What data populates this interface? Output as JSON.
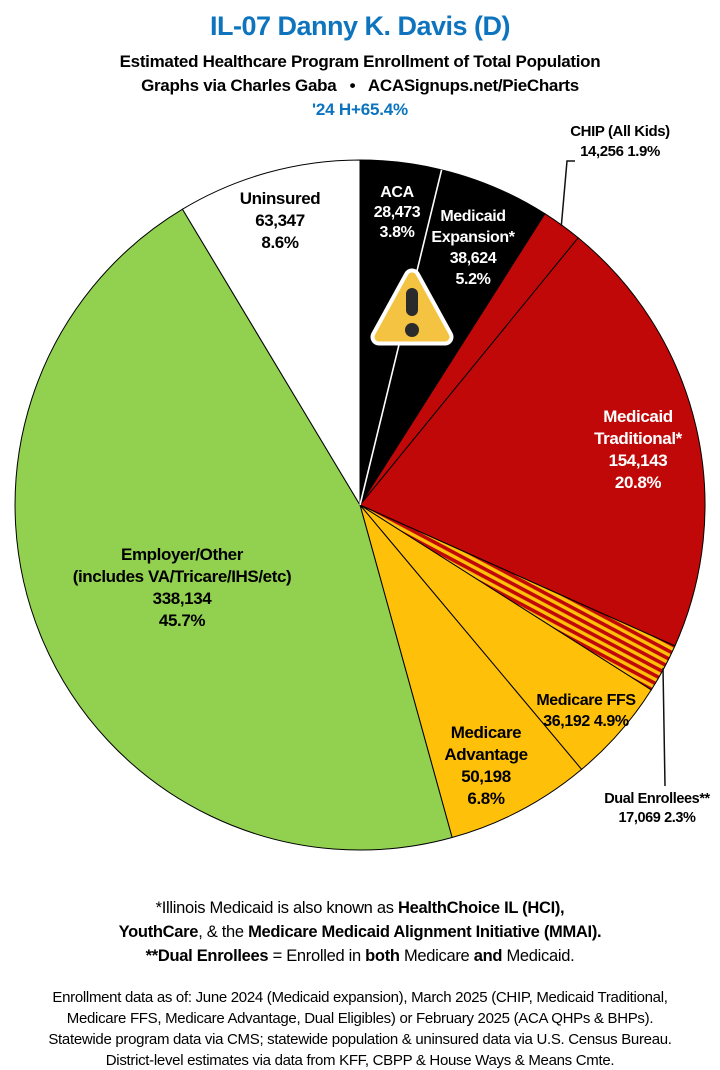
{
  "header": {
    "title": "IL-07 Danny K. Davis (D)",
    "subtitle1": "Estimated Healthcare Program Enrollment of Total Population",
    "subtitle2": "Graphs via Charles Gaba   •   ACASignups.net/PieCharts",
    "subtitle3": "'24 H+65.4%"
  },
  "colors": {
    "title_blue": "#0E74BE",
    "pie_black": "#000000",
    "pie_red": "#C00808",
    "pie_gold": "#FFC00A",
    "pie_green": "#92D050",
    "pie_white": "#FFFFFF",
    "warning_amber": "#F5C342",
    "label_light": "#FFFFFF",
    "label_dark": "#000000"
  },
  "icons": {
    "warning": "warning-triangle-icon"
  },
  "chart_data": {
    "type": "pie",
    "title": "IL-07 Danny K. Davis (D)",
    "units": "people enrolled (estimated)",
    "start_angle": "12 o'clock, clockwise",
    "legend_position": "labels on slices and callouts",
    "slices": [
      {
        "id": "aca",
        "name": "ACA",
        "value": 28473,
        "pct": 3.8,
        "color": "#000000",
        "display": {
          "l1": "ACA",
          "l2": "28,473",
          "l3": "3.8%"
        }
      },
      {
        "id": "medicaid-expansion",
        "name": "Medicaid Expansion*",
        "value": 38624,
        "pct": 5.2,
        "color": "#000000",
        "display": {
          "l1": "Medicaid",
          "l2": "Expansion*",
          "l3": "38,624",
          "l4": "5.2%"
        }
      },
      {
        "id": "chip",
        "name": "CHIP (All Kids)",
        "value": 14256,
        "pct": 1.9,
        "color": "#C00808",
        "display": {
          "l1": "CHIP (All Kids)",
          "l2": "14,256 1.9%"
        }
      },
      {
        "id": "medicaid-traditional",
        "name": "Medicaid Traditional*",
        "value": 154143,
        "pct": 20.8,
        "color": "#C00808",
        "display": {
          "l1": "Medicaid",
          "l2": "Traditional*",
          "l3": "154,143",
          "l4": "20.8%"
        }
      },
      {
        "id": "dual-enrollees",
        "name": "Dual Enrollees**",
        "value": 17069,
        "pct": 2.3,
        "fill_pattern": "red-gold-diagonal-stripes",
        "pattern_colors": [
          "#C00808",
          "#FFC00A"
        ],
        "display": {
          "l1": "Dual Enrollees**",
          "l2": "17,069 2.3%"
        }
      },
      {
        "id": "medicare-ffs",
        "name": "Medicare FFS",
        "value": 36192,
        "pct": 4.9,
        "color": "#FFC00A",
        "display": {
          "l1": "Medicare FFS",
          "l2": "36,192 4.9%"
        }
      },
      {
        "id": "medicare-advantage",
        "name": "Medicare Advantage",
        "value": 50198,
        "pct": 6.8,
        "color": "#FFC00A",
        "display": {
          "l1": "Medicare",
          "l2": "Advantage",
          "l3": "50,198",
          "l4": "6.8%"
        }
      },
      {
        "id": "employer-other",
        "name": "Employer/Other (includes VA/Tricare/IHS/etc)",
        "value": 338134,
        "pct": 45.7,
        "color": "#92D050",
        "display": {
          "l1": "Employer/Other",
          "l2": "(includes VA/Tricare/IHS/etc)",
          "l3": "338,134",
          "l4": "45.7%"
        }
      },
      {
        "id": "uninsured",
        "name": "Uninsured",
        "value": 63347,
        "pct": 8.6,
        "color": "#FFFFFF",
        "display": {
          "l1": "Uninsured",
          "l2": "63,347",
          "l3": "8.6%"
        }
      }
    ]
  },
  "footnotes": {
    "line1": [
      {
        "t": "*Illinois Medicaid is also known as ",
        "b": false
      },
      {
        "t": "HealthChoice IL (HCI),",
        "b": true
      }
    ],
    "line2": [
      {
        "t": "YouthCare",
        "b": true
      },
      {
        "t": ", & the ",
        "b": false
      },
      {
        "t": "Medicare Medicaid Alignment Initiative (MMAI).",
        "b": true
      }
    ],
    "line3": [
      {
        "t": "**Dual Enrollees",
        "b": true
      },
      {
        "t": " = Enrolled in ",
        "b": false
      },
      {
        "t": "both",
        "b": true
      },
      {
        "t": " Medicare ",
        "b": false
      },
      {
        "t": "and",
        "b": true
      },
      {
        "t": " Medicaid.",
        "b": false
      }
    ]
  },
  "source_note_lines": [
    "Enrollment data as of: June 2024 (Medicaid expansion), March 2025 (CHIP, Medicaid Traditional,",
    "Medicare FFS, Medicare Advantage, Dual Eligibles) or February 2025 (ACA QHPs & BHPs).",
    "Statewide program data via CMS; statewide population & uninsured data via U.S. Census Bureau.",
    "District-level estimates via data from KFF, CBPP & House Ways & Means Cmte."
  ]
}
